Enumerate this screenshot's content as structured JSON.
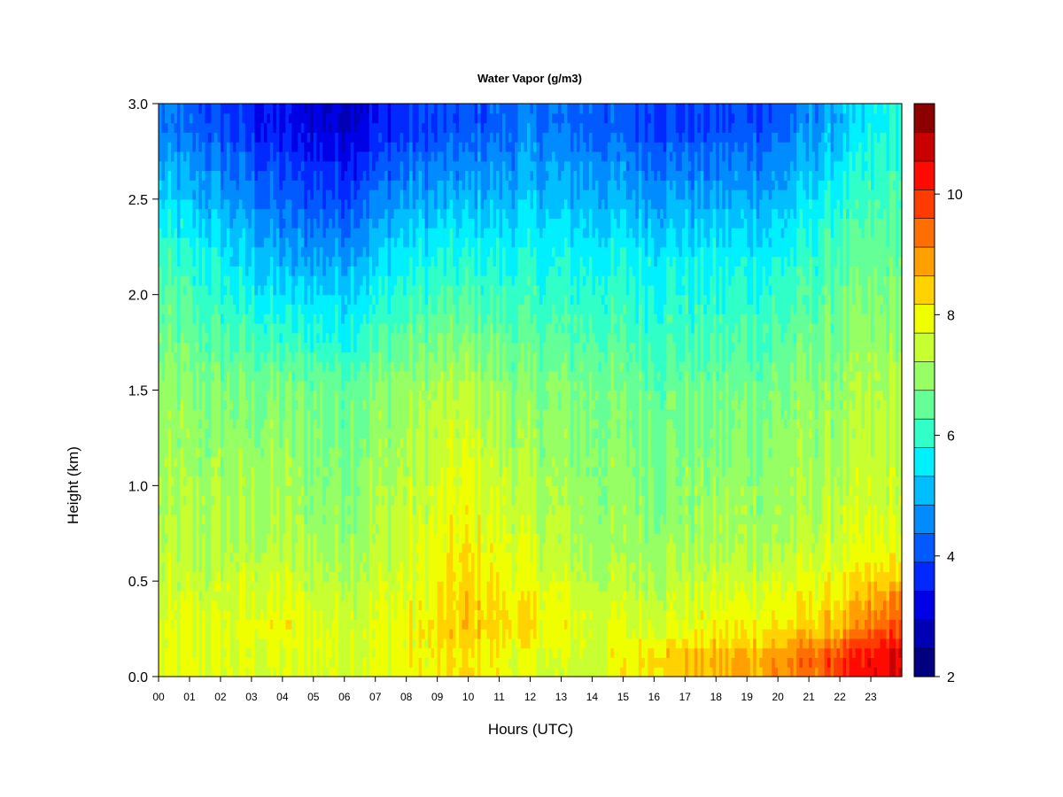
{
  "chart_data": {
    "type": "heatmap",
    "title": "Water Vapor (g/m3)",
    "xlabel": "Hours (UTC)",
    "ylabel": "Height (km)",
    "xlim": [
      0,
      24
    ],
    "ylim": [
      0,
      3.0
    ],
    "x_ticks": [
      "00",
      "01",
      "02",
      "03",
      "04",
      "05",
      "06",
      "07",
      "08",
      "09",
      "10",
      "11",
      "12",
      "13",
      "14",
      "15",
      "16",
      "17",
      "18",
      "19",
      "20",
      "21",
      "22",
      "23"
    ],
    "y_ticks": [
      "0.0",
      "0.5",
      "1.0",
      "1.5",
      "2.0",
      "2.5",
      "3.0"
    ],
    "colorbar": {
      "min": 2,
      "max": 11.5,
      "step": 0.5,
      "ticks": [
        "2",
        "4",
        "6",
        "8",
        "10"
      ],
      "colors": [
        "#000080",
        "#0000b4",
        "#0000e6",
        "#0028ff",
        "#005aff",
        "#008cff",
        "#00beff",
        "#00f0ff",
        "#30ffc8",
        "#64ff96",
        "#96ff64",
        "#c8ff30",
        "#f0ff00",
        "#ffd200",
        "#ffa000",
        "#ff6e00",
        "#ff3c00",
        "#ff0a00",
        "#c80000",
        "#8c0000"
      ]
    },
    "series_description_levels": [
      {
        "height_km": 0.1,
        "hours": [
          0,
          2,
          4,
          6,
          8,
          10,
          12,
          14,
          16,
          18,
          20,
          22,
          23.8
        ],
        "water_vapor_g_m3": [
          8.0,
          8.0,
          8.0,
          8.0,
          8.2,
          8.5,
          8.0,
          7.8,
          8.8,
          9.0,
          9.3,
          10.3,
          11.0
        ]
      },
      {
        "height_km": 0.25,
        "hours": [
          0,
          2,
          4,
          6,
          8,
          10,
          12,
          14,
          16,
          18,
          20,
          22,
          23.8
        ],
        "water_vapor_g_m3": [
          8.0,
          8.0,
          8.3,
          8.0,
          8.2,
          8.9,
          8.5,
          8.0,
          8.0,
          8.3,
          8.5,
          9.0,
          10.2
        ]
      },
      {
        "height_km": 0.7,
        "hours": [
          0,
          2,
          4,
          6,
          8,
          10,
          12,
          14,
          16,
          18,
          20,
          22,
          23.8
        ],
        "water_vapor_g_m3": [
          7.5,
          7.5,
          7.5,
          7.3,
          7.8,
          8.4,
          7.8,
          7.3,
          7.3,
          7.4,
          7.5,
          7.8,
          8.0
        ]
      },
      {
        "height_km": 1.5,
        "hours": [
          0,
          2,
          4,
          6,
          8,
          10,
          12,
          14,
          16,
          18,
          20,
          22,
          23.8
        ],
        "water_vapor_g_m3": [
          7.2,
          7.0,
          7.0,
          6.8,
          7.3,
          7.6,
          7.0,
          7.0,
          6.8,
          6.8,
          7.0,
          7.2,
          7.5
        ]
      },
      {
        "height_km": 2.2,
        "hours": [
          0,
          2,
          4,
          6,
          8,
          10,
          12,
          14,
          16,
          18,
          20,
          22,
          23.8
        ],
        "water_vapor_g_m3": [
          6.3,
          5.8,
          5.0,
          5.0,
          5.8,
          6.0,
          5.9,
          5.9,
          5.8,
          5.8,
          5.9,
          6.6,
          6.8
        ]
      },
      {
        "height_km": 2.9,
        "hours": [
          0,
          2,
          4,
          6,
          8,
          10,
          12,
          14,
          16,
          18,
          20,
          22,
          23.8
        ],
        "water_vapor_g_m3": [
          4.5,
          4.0,
          3.3,
          3.0,
          3.8,
          4.1,
          4.5,
          4.3,
          4.0,
          4.0,
          4.2,
          5.2,
          6.0
        ]
      }
    ]
  }
}
